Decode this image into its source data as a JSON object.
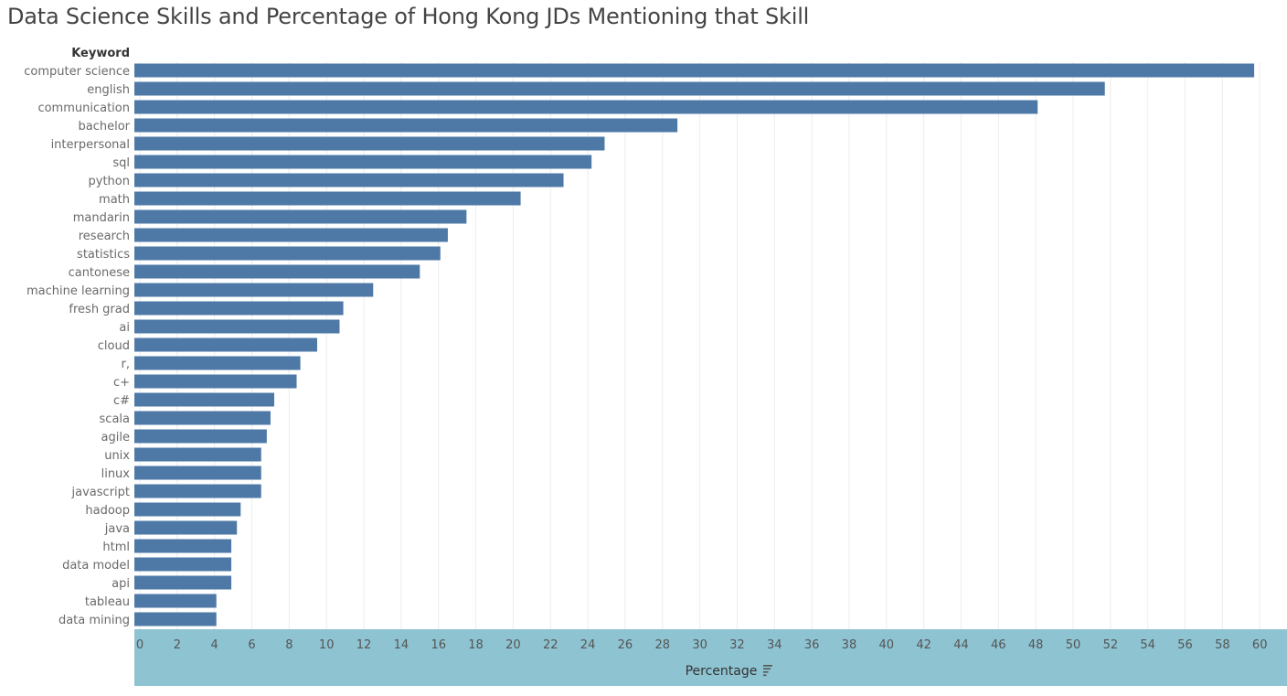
{
  "chart_data": {
    "type": "bar",
    "orientation": "horizontal",
    "title": "Data Science Skills and Percentage of Hong Kong JDs Mentioning that Skill",
    "row_header": "Keyword",
    "xlabel": "Percentage",
    "xlim": [
      0,
      61
    ],
    "xticks": [
      0,
      2,
      4,
      6,
      8,
      10,
      12,
      14,
      16,
      18,
      20,
      22,
      24,
      26,
      28,
      30,
      32,
      34,
      36,
      38,
      40,
      42,
      44,
      46,
      48,
      50,
      52,
      54,
      56,
      58,
      60
    ],
    "grid": true,
    "categories": [
      "computer science",
      "english",
      "communication",
      "bachelor",
      "interpersonal",
      "sql",
      "python",
      "math",
      "mandarin",
      "research",
      "statistics",
      "cantonese",
      "machine learning",
      "fresh grad",
      "ai",
      "cloud",
      "r,",
      "c+",
      "c#",
      "scala",
      "agile",
      "unix",
      "linux",
      "javascript",
      "hadoop",
      "java",
      "html",
      "data model",
      "api",
      "tableau",
      "data mining"
    ],
    "values": [
      59.7,
      51.7,
      48.1,
      28.8,
      24.9,
      24.2,
      22.7,
      20.4,
      17.5,
      16.5,
      16.1,
      15.0,
      12.5,
      10.9,
      10.7,
      9.5,
      8.6,
      8.4,
      7.2,
      7.0,
      6.8,
      6.5,
      6.5,
      6.5,
      5.4,
      5.2,
      4.9,
      4.9,
      4.9,
      4.1,
      4.1
    ]
  },
  "colors": {
    "bar": "#4e79a7",
    "axis_band": "#8ec3d1",
    "grid": "#ececec",
    "title": "#444444"
  },
  "icons": {
    "sort": "sort-descending-icon"
  }
}
